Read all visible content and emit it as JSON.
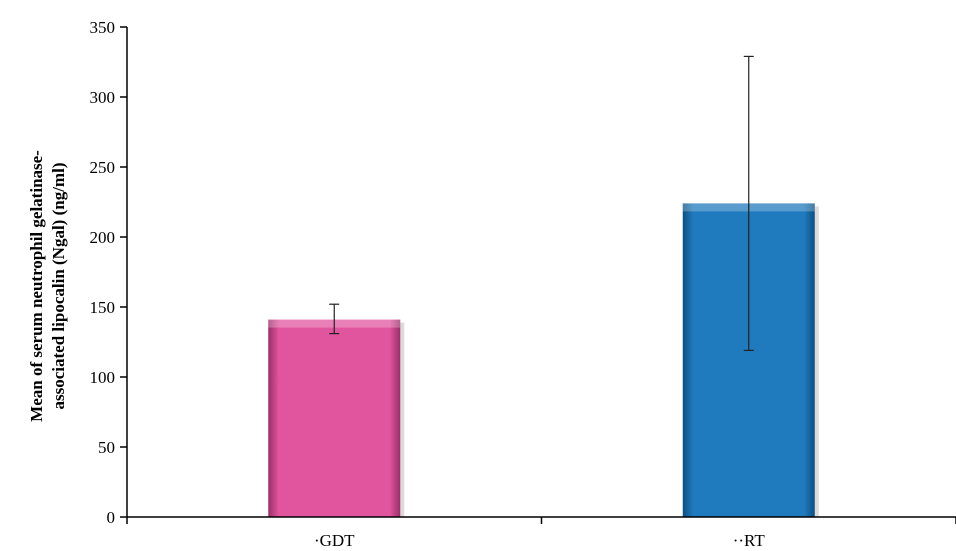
{
  "chart_data": {
    "type": "bar",
    "title": "",
    "xlabel": "",
    "ylabel_lines": [
      "Mean of serum neutrophil gelatinase-",
      "associated lipocalin (Ngal) (ng/ml)"
    ],
    "categories": [
      "·GDT",
      "··RT"
    ],
    "values": [
      141,
      224
    ],
    "error_low": [
      131,
      119
    ],
    "error_high": [
      152,
      329
    ],
    "ylim": [
      0,
      350
    ],
    "yticks": [
      0,
      50,
      100,
      150,
      200,
      250,
      300,
      350
    ],
    "grid": false,
    "legend": "none",
    "colors": [
      "#e0559e",
      "#1f7bbd"
    ],
    "edge_colors": [
      "#9c2d68",
      "#0c4f82"
    ]
  }
}
